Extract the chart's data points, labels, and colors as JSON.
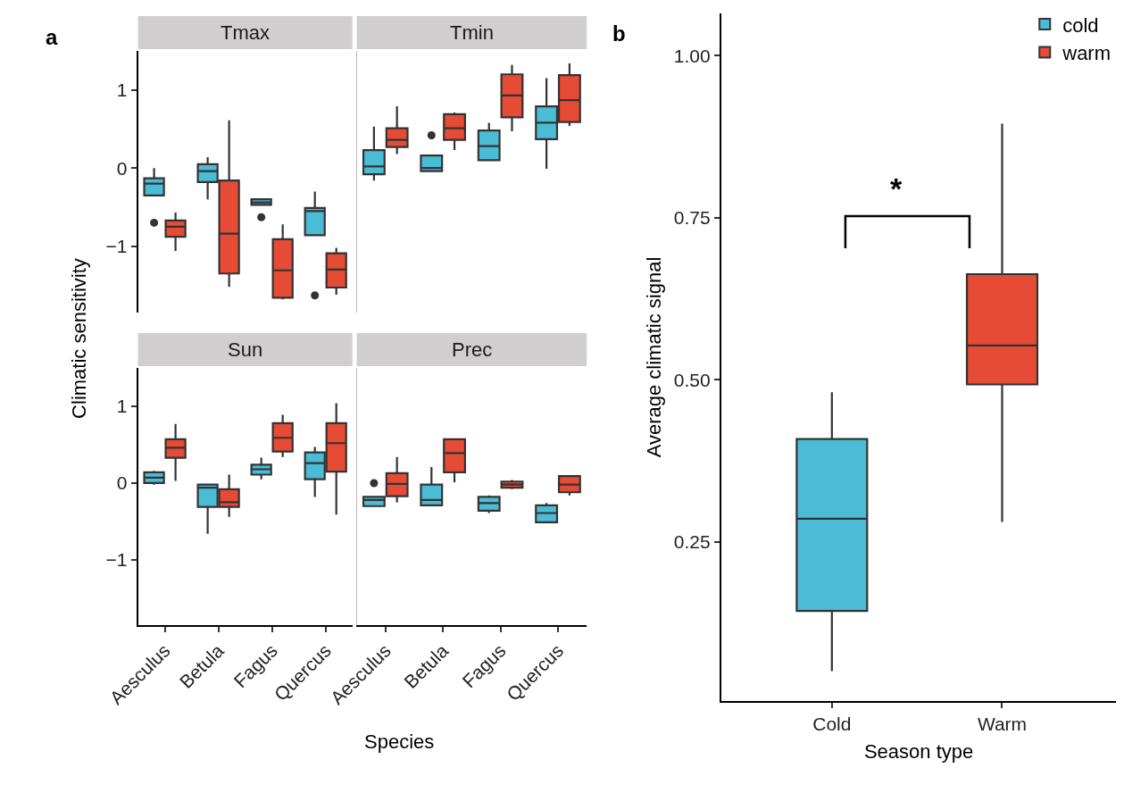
{
  "chart_data": [
    {
      "type": "box",
      "title": "Tmax",
      "ylabel": "Climatic sensitivity",
      "annotations": [
        "a"
      ],
      "categories": [
        "Aesculus",
        "Betula",
        "Fagus",
        "Quercus"
      ],
      "ylim": [
        -1.85,
        1.5
      ],
      "yticks": [
        {
          "value": -1,
          "label": "−1"
        },
        0,
        1
      ],
      "tick_labels": "y",
      "grid": false,
      "legend": false,
      "series": [
        {
          "color": "#4bbcd6",
          "boxes": [
            {
              "low": -0.35,
              "q1": -0.35,
              "median": -0.2,
              "q3": -0.13,
              "high": 0.0,
              "outliers": [
                -0.7
              ]
            },
            {
              "low": -0.4,
              "q1": -0.18,
              "median": -0.04,
              "q3": 0.05,
              "high": 0.14
            },
            {
              "low": -0.47,
              "q1": -0.47,
              "median": -0.44,
              "q3": -0.4,
              "high": -0.4,
              "outliers": [
                -0.63
              ]
            },
            {
              "low": -0.86,
              "q1": -0.86,
              "median": -0.55,
              "q3": -0.51,
              "high": -0.3,
              "outliers": [
                -1.63
              ]
            }
          ]
        },
        {
          "color": "#e64b35",
          "boxes": [
            {
              "low": -1.06,
              "q1": -0.88,
              "median": -0.75,
              "q3": -0.67,
              "high": -0.57
            },
            {
              "low": -1.52,
              "q1": -1.35,
              "median": -0.84,
              "q3": -0.16,
              "high": 0.61
            },
            {
              "low": -1.68,
              "q1": -1.66,
              "median": -1.31,
              "q3": -0.91,
              "high": -0.72
            },
            {
              "low": -1.62,
              "q1": -1.53,
              "median": -1.3,
              "q3": -1.09,
              "high": -1.02
            }
          ]
        }
      ]
    },
    {
      "type": "box",
      "title": "Tmin",
      "categories": [
        "Aesculus",
        "Betula",
        "Fagus",
        "Quercus"
      ],
      "ylim": [
        -1.85,
        1.5
      ],
      "tick_labels": false,
      "grid": false,
      "legend": false,
      "series": [
        {
          "color": "#4bbcd6",
          "boxes": [
            {
              "low": -0.16,
              "q1": -0.08,
              "median": 0.02,
              "q3": 0.23,
              "high": 0.53
            },
            {
              "low": -0.04,
              "q1": -0.04,
              "median": 0.0,
              "q3": 0.16,
              "high": 0.16,
              "outliers": [
                0.42
              ]
            },
            {
              "low": 0.1,
              "q1": 0.1,
              "median": 0.28,
              "q3": 0.48,
              "high": 0.58
            },
            {
              "low": -0.01,
              "q1": 0.37,
              "median": 0.58,
              "q3": 0.79,
              "high": 1.15
            }
          ]
        },
        {
          "color": "#e64b35",
          "boxes": [
            {
              "low": 0.18,
              "q1": 0.27,
              "median": 0.36,
              "q3": 0.51,
              "high": 0.79
            },
            {
              "low": 0.23,
              "q1": 0.36,
              "median": 0.51,
              "q3": 0.69,
              "high": 0.71
            },
            {
              "low": 0.47,
              "q1": 0.65,
              "median": 0.93,
              "q3": 1.2,
              "high": 1.32
            },
            {
              "low": 0.54,
              "q1": 0.59,
              "median": 0.87,
              "q3": 1.19,
              "high": 1.34
            }
          ]
        }
      ]
    },
    {
      "type": "box",
      "title": "Sun",
      "xlabel": "Species",
      "categories": [
        "Aesculus",
        "Betula",
        "Fagus",
        "Quercus"
      ],
      "ylim": [
        -1.85,
        1.5
      ],
      "yticks": [
        {
          "value": -1,
          "label": "−1"
        },
        0,
        1
      ],
      "grid": false,
      "legend": false,
      "series": [
        {
          "color": "#4bbcd6",
          "boxes": [
            {
              "low": -0.02,
              "q1": 0.0,
              "median": 0.07,
              "q3": 0.14,
              "high": 0.16
            },
            {
              "low": -0.66,
              "q1": -0.31,
              "median": -0.06,
              "q3": -0.02,
              "high": -0.02
            },
            {
              "low": 0.05,
              "q1": 0.11,
              "median": 0.18,
              "q3": 0.24,
              "high": 0.33
            },
            {
              "low": -0.18,
              "q1": 0.05,
              "median": 0.26,
              "q3": 0.4,
              "high": 0.47
            }
          ]
        },
        {
          "color": "#e64b35",
          "boxes": [
            {
              "low": 0.03,
              "q1": 0.33,
              "median": 0.46,
              "q3": 0.57,
              "high": 0.77
            },
            {
              "low": -0.44,
              "q1": -0.31,
              "median": -0.25,
              "q3": -0.08,
              "high": 0.11
            },
            {
              "low": 0.34,
              "q1": 0.41,
              "median": 0.59,
              "q3": 0.78,
              "high": 0.89
            },
            {
              "low": -0.41,
              "q1": 0.15,
              "median": 0.52,
              "q3": 0.78,
              "high": 1.04
            }
          ]
        }
      ]
    },
    {
      "type": "box",
      "title": "Prec",
      "categories": [
        "Aesculus",
        "Betula",
        "Fagus",
        "Quercus"
      ],
      "ylim": [
        -1.85,
        1.5
      ],
      "tick_labels": "x",
      "grid": false,
      "legend": false,
      "series": [
        {
          "color": "#4bbcd6",
          "boxes": [
            {
              "low": -0.3,
              "q1": -0.3,
              "median": -0.22,
              "q3": -0.18,
              "high": -0.18,
              "outliers": [
                0.0
              ]
            },
            {
              "low": -0.29,
              "q1": -0.29,
              "median": -0.22,
              "q3": -0.02,
              "high": 0.21
            },
            {
              "low": -0.39,
              "q1": -0.36,
              "median": -0.26,
              "q3": -0.18,
              "high": -0.16
            },
            {
              "low": -0.51,
              "q1": -0.51,
              "median": -0.39,
              "q3": -0.29,
              "high": -0.26
            }
          ]
        },
        {
          "color": "#e64b35",
          "boxes": [
            {
              "low": -0.25,
              "q1": -0.17,
              "median": -0.01,
              "q3": 0.13,
              "high": 0.34
            },
            {
              "low": 0.01,
              "q1": 0.14,
              "median": 0.39,
              "q3": 0.57,
              "high": 0.57
            },
            {
              "low": -0.08,
              "q1": -0.06,
              "median": -0.02,
              "q3": 0.02,
              "high": 0.04
            },
            {
              "low": -0.16,
              "q1": -0.12,
              "median": -0.02,
              "q3": 0.09,
              "high": 0.09
            }
          ]
        }
      ]
    },
    {
      "type": "box",
      "xlabel": "Season type",
      "ylabel": "Average climatic signal",
      "annotations": [
        "b",
        "*"
      ],
      "categories": [
        "Cold",
        "Warm"
      ],
      "ylim": [
        0.005,
        1.065
      ],
      "yticks": [
        0.25,
        {
          "value": 0.5,
          "label": "0.50"
        },
        0.75,
        {
          "value": 1,
          "label": "1.00"
        }
      ],
      "grid": false,
      "legend": "top right",
      "series": [
        {
          "name": "cold",
          "color": "#4bbcd6",
          "boxes": [
            {
              "low": 0.051,
              "q1": 0.144,
              "median": 0.286,
              "q3": 0.409,
              "high": 0.481
            },
            null
          ]
        },
        {
          "name": "warm",
          "color": "#e64b35",
          "boxes": [
            null,
            {
              "low": 0.281,
              "q1": 0.493,
              "median": 0.553,
              "q3": 0.663,
              "high": 0.895
            }
          ]
        }
      ]
    }
  ]
}
